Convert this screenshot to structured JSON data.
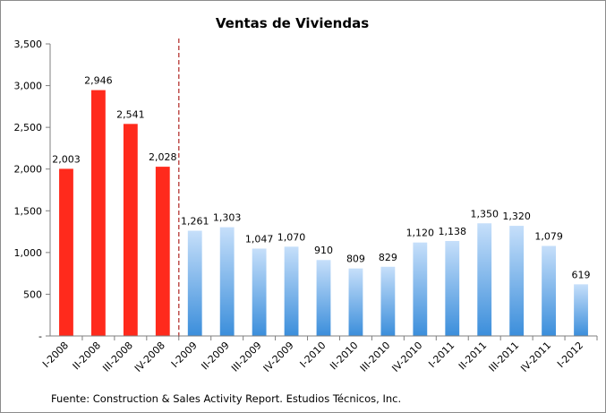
{
  "chart_data": {
    "type": "bar",
    "title": "Ventas de Viviendas",
    "categories": [
      "I-2008",
      "II-2008",
      "III-2008",
      "IV-2008",
      "I-2009",
      "II-2009",
      "III-2009",
      "IV-2009",
      "I-2010",
      "II-2010",
      "III-2010",
      "IV-2010",
      "I-2011",
      "II-2011",
      "III-2011",
      "IV-2011",
      "I-2012"
    ],
    "values": [
      2003,
      2946,
      2541,
      2028,
      1261,
      1303,
      1047,
      1070,
      910,
      809,
      829,
      1120,
      1138,
      1350,
      1320,
      1079,
      619
    ],
    "value_labels": [
      "2,003",
      "2,946",
      "2,541",
      "2,028",
      "1,261",
      "1,303",
      "1,047",
      "1,070",
      "910",
      "809",
      "829",
      "1,120",
      "1,138",
      "1,350",
      "1,320",
      "1,079",
      "619"
    ],
    "y_ticks": [
      0,
      500,
      1000,
      1500,
      2000,
      2500,
      3000,
      3500
    ],
    "y_tick_labels": [
      "-",
      "500",
      "1,000",
      "1,500",
      "2,000",
      "2,500",
      "3,000",
      "3,500"
    ],
    "ylim": [
      0,
      3500
    ],
    "grid": false,
    "xlabel": "",
    "ylabel": "",
    "highlight_first_n": 4,
    "divider_after_category": "IV-2008",
    "colors": {
      "highlight": "#ff2a1c",
      "bar_top": "#c6dffa",
      "bar_bottom": "#3b8edb",
      "divider": "#c0504d",
      "axis": "#7f7f7f"
    },
    "source": "Fuente: Construction & Sales Activity Report. Estudios Técnicos, Inc."
  }
}
